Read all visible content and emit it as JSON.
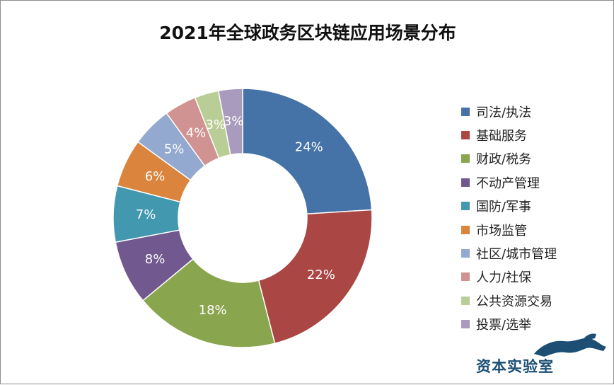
{
  "chart_data": {
    "type": "pie",
    "donut": true,
    "title": "2021年全球政务区块链应用场景分布",
    "categories": [
      "司法/执法",
      "基础服务",
      "财政/税务",
      "不动产管理",
      "国防/军事",
      "市场监管",
      "社区/城市管理",
      "人力/社保",
      "公共资源交易",
      "投票/选举"
    ],
    "values": [
      24,
      22,
      18,
      8,
      7,
      6,
      5,
      4,
      3,
      3
    ],
    "data_labels": [
      "24%",
      "22%",
      "18%",
      "8%",
      "7%",
      "6%",
      "5%",
      "4%",
      "3%",
      "3%"
    ],
    "colors": [
      "#4572a7",
      "#aa4643",
      "#89a54e",
      "#71588f",
      "#4198af",
      "#db843d",
      "#93a9cf",
      "#d19392",
      "#b9cd96",
      "#a99bbd"
    ],
    "legend_position": "right"
  },
  "watermark": {
    "text": "资本实验室"
  }
}
